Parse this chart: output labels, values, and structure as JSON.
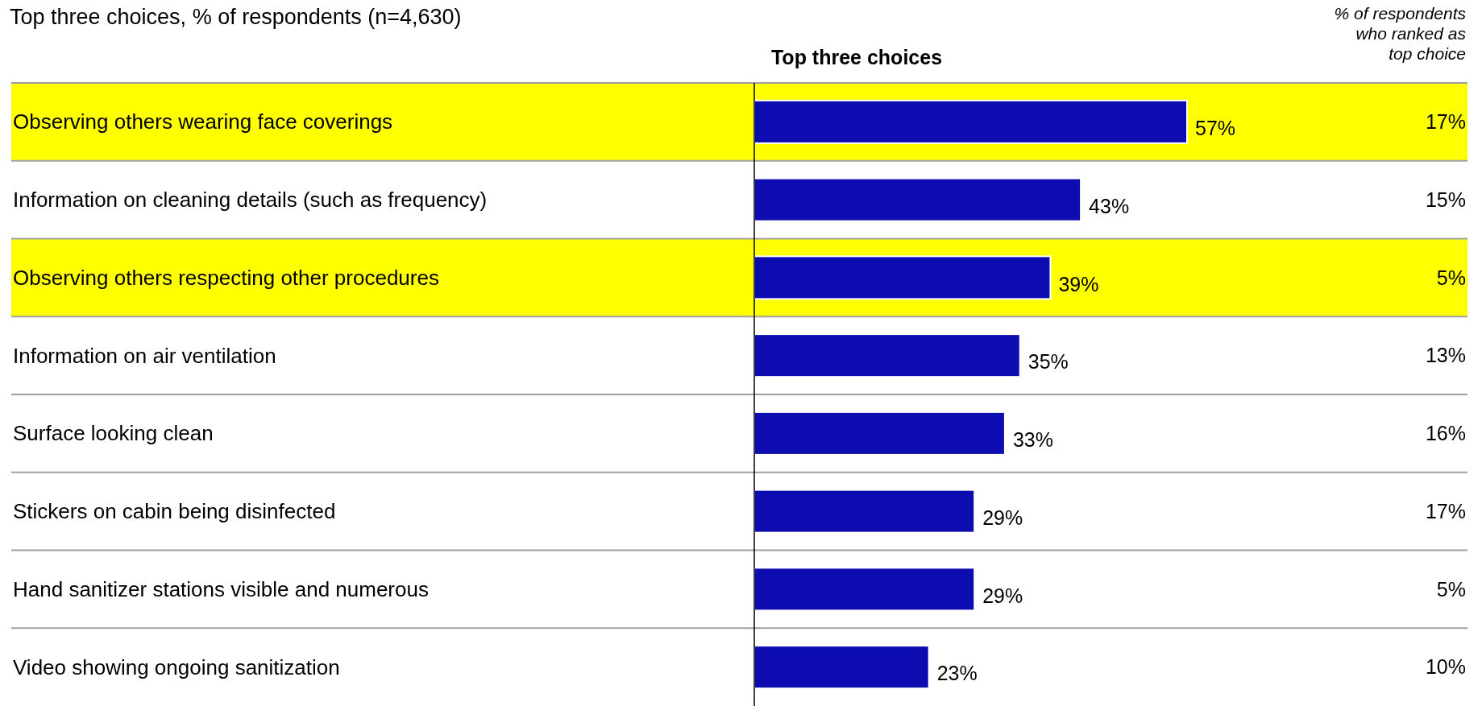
{
  "chart_data": {
    "type": "bar",
    "orientation": "horizontal",
    "title": "Top three choices, % of respondents (n=4,630)",
    "xlabel": "Top three choices",
    "categories": [
      "Observing others wearing face coverings",
      "Information on cleaning details (such as frequency)",
      "Observing others respecting other procedures",
      "Information on air ventilation",
      "Surface looking clean",
      "Stickers on cabin being disinfected",
      "Hand sanitizer stations visible and numerous",
      "Video showing ongoing sanitization"
    ],
    "values": [
      57,
      43,
      39,
      35,
      33,
      29,
      29,
      23
    ],
    "value_labels": [
      "57%",
      "43%",
      "39%",
      "35%",
      "33%",
      "29%",
      "29%",
      "23%"
    ],
    "color": "#0c0cb0",
    "relative": false,
    "grid": "y",
    "bands": [
      {
        "axis": "y",
        "from": "Observing others wearing face coverings",
        "to": "Observing others wearing face coverings",
        "color": "#ffff00"
      },
      {
        "axis": "y",
        "from": "Observing others respecting other procedures",
        "to": "Observing others respecting other procedures",
        "color": "#ffff00"
      }
    ],
    "annotations": [
      "% of respondents who ranked as top choice",
      "17%",
      "15%",
      "5%",
      "13%",
      "16%",
      "17%",
      "5%",
      "10%"
    ]
  }
}
